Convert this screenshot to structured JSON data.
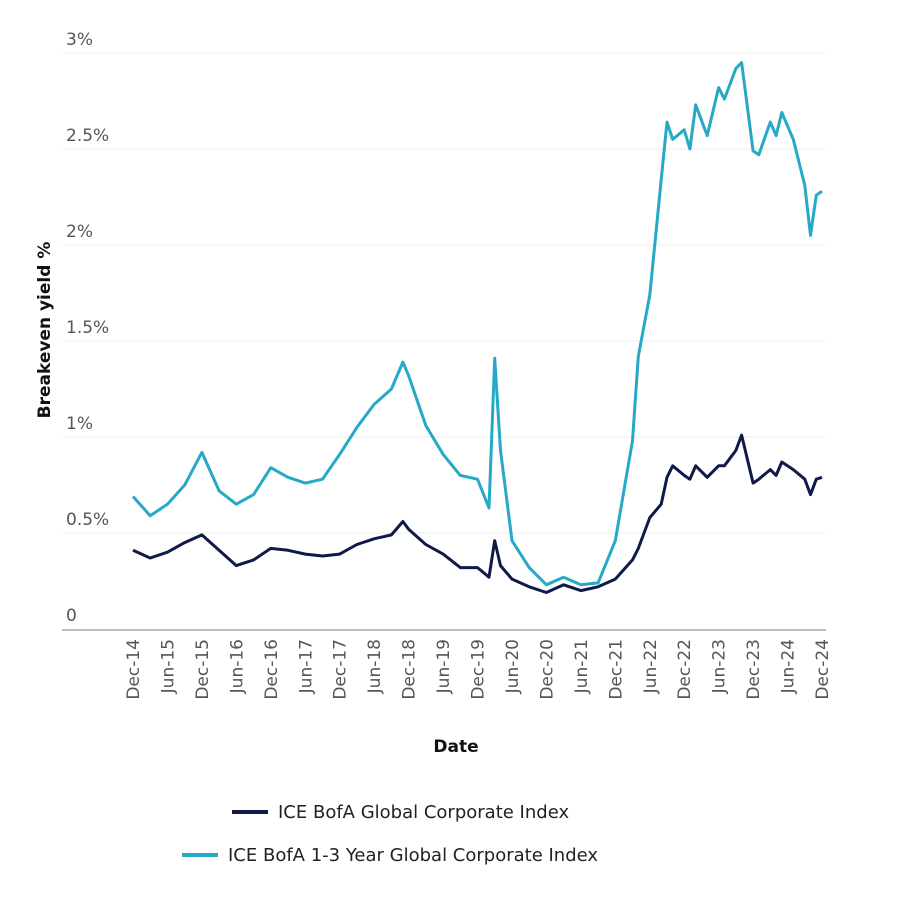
{
  "chart_data": {
    "type": "line",
    "xlabel": "Date",
    "ylabel": "Breakeven yield %",
    "ylim": [
      0,
      3
    ],
    "yticks": [
      {
        "value": 0,
        "label": "0"
      },
      {
        "value": 0.5,
        "label": "0.5%"
      },
      {
        "value": 1,
        "label": "1%"
      },
      {
        "value": 1.5,
        "label": "1.5%"
      },
      {
        "value": 2,
        "label": "2%"
      },
      {
        "value": 2.5,
        "label": "2.5%"
      },
      {
        "value": 3,
        "label": "3%"
      }
    ],
    "xticks": [
      "Dec-14",
      "Jun-15",
      "Dec-15",
      "Jun-16",
      "Dec-16",
      "Jun-17",
      "Dec-17",
      "Jun-18",
      "Dec-18",
      "Jun-19",
      "Dec-19",
      "Jun-20",
      "Dec-20",
      "Jun-21",
      "Dec-21",
      "Jun-22",
      "Dec-22",
      "Jun-23",
      "Dec-23",
      "Jun-24",
      "Dec-24"
    ],
    "xtick_dates": [
      "2014-12",
      "2015-06",
      "2015-12",
      "2016-06",
      "2016-12",
      "2017-06",
      "2017-12",
      "2018-06",
      "2018-12",
      "2019-06",
      "2019-12",
      "2020-06",
      "2020-12",
      "2021-06",
      "2021-12",
      "2022-06",
      "2022-12",
      "2023-06",
      "2023-12",
      "2024-06",
      "2024-12"
    ],
    "grid": "horizontal",
    "legend_position": "bottom",
    "x": [
      "2014-12",
      "2015-03",
      "2015-06",
      "2015-09",
      "2015-12",
      "2016-03",
      "2016-06",
      "2016-09",
      "2016-12",
      "2017-03",
      "2017-06",
      "2017-09",
      "2017-12",
      "2018-03",
      "2018-06",
      "2018-09",
      "2018-11",
      "2018-12",
      "2019-03",
      "2019-06",
      "2019-09",
      "2019-12",
      "2020-02",
      "2020-03",
      "2020-04",
      "2020-06",
      "2020-09",
      "2020-12",
      "2021-03",
      "2021-06",
      "2021-09",
      "2021-12",
      "2022-03",
      "2022-04",
      "2022-06",
      "2022-08",
      "2022-09",
      "2022-10",
      "2022-12",
      "2023-01",
      "2023-02",
      "2023-04",
      "2023-06",
      "2023-07",
      "2023-09",
      "2023-10",
      "2023-12",
      "2024-01",
      "2024-03",
      "2024-04",
      "2024-05",
      "2024-07",
      "2024-09",
      "2024-10",
      "2024-11",
      "2024-12"
    ],
    "series": [
      {
        "name": "ICE BofA Global Corporate Index",
        "color": "#0f1a4a",
        "values": [
          0.41,
          0.37,
          0.4,
          0.45,
          0.49,
          0.41,
          0.33,
          0.36,
          0.42,
          0.41,
          0.39,
          0.38,
          0.39,
          0.44,
          0.47,
          0.49,
          0.56,
          0.52,
          0.44,
          0.39,
          0.32,
          0.32,
          0.27,
          0.46,
          0.33,
          0.26,
          0.22,
          0.19,
          0.23,
          0.2,
          0.22,
          0.26,
          0.36,
          0.42,
          0.58,
          0.65,
          0.79,
          0.85,
          0.8,
          0.78,
          0.85,
          0.79,
          0.85,
          0.85,
          0.93,
          1.01,
          0.76,
          0.78,
          0.83,
          0.8,
          0.87,
          0.83,
          0.78,
          0.7,
          0.78,
          0.79
        ]
      },
      {
        "name": "ICE BofA 1-3 Year Global Corporate Index",
        "color": "#26a9c6",
        "values": [
          0.69,
          0.59,
          0.65,
          0.75,
          0.92,
          0.72,
          0.65,
          0.7,
          0.84,
          0.79,
          0.76,
          0.78,
          0.91,
          1.05,
          1.17,
          1.25,
          1.39,
          1.32,
          1.06,
          0.91,
          0.8,
          0.78,
          0.63,
          1.41,
          0.93,
          0.46,
          0.32,
          0.23,
          0.27,
          0.23,
          0.24,
          0.46,
          0.98,
          1.42,
          1.74,
          2.34,
          2.64,
          2.55,
          2.6,
          2.5,
          2.73,
          2.57,
          2.82,
          2.76,
          2.92,
          2.95,
          2.49,
          2.47,
          2.64,
          2.57,
          2.69,
          2.55,
          2.31,
          2.05,
          2.26,
          2.28
        ]
      }
    ]
  }
}
